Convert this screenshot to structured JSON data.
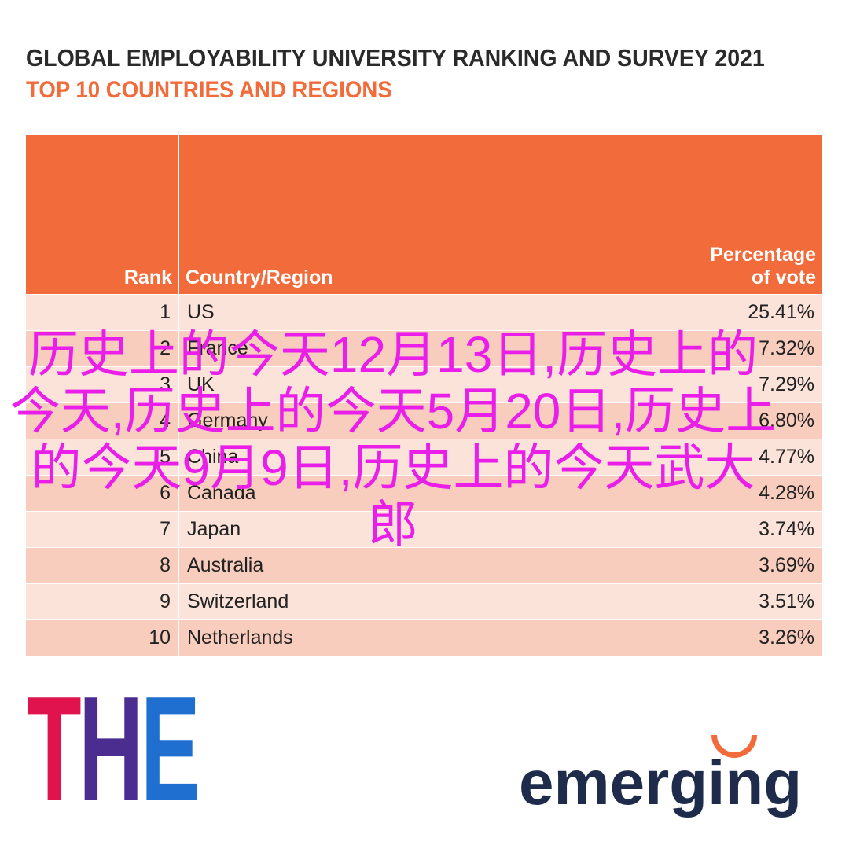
{
  "header": {
    "title": "GLOBAL EMPLOYABILITY UNIVERSITY RANKING AND SURVEY 2021",
    "subtitle": "TOP 10 COUNTRIES AND REGIONS"
  },
  "table": {
    "columns": [
      "Rank",
      "Country/Region",
      "Percentage of vote"
    ],
    "rows": [
      [
        "1",
        "US",
        "25.41%"
      ],
      [
        "2",
        "France",
        "7.32%"
      ],
      [
        "3",
        "UK",
        "7.29%"
      ],
      [
        "4",
        "Germany",
        "6.80%"
      ],
      [
        "5",
        "China",
        "4.77%"
      ],
      [
        "6",
        "Canada",
        "4.28%"
      ],
      [
        "7",
        "Japan",
        "3.74%"
      ],
      [
        "8",
        "Australia",
        "3.69%"
      ],
      [
        "9",
        "Switzerland",
        "3.51%"
      ],
      [
        "10",
        "Netherlands",
        "3.26%"
      ]
    ]
  },
  "overlay": "历史上的今天12月13日,历史上的今天,历史上的今天5月20日,历史上的今天9月9日,历史上的今天武大郎",
  "logos": {
    "left": "THE",
    "right": "emerging"
  }
}
